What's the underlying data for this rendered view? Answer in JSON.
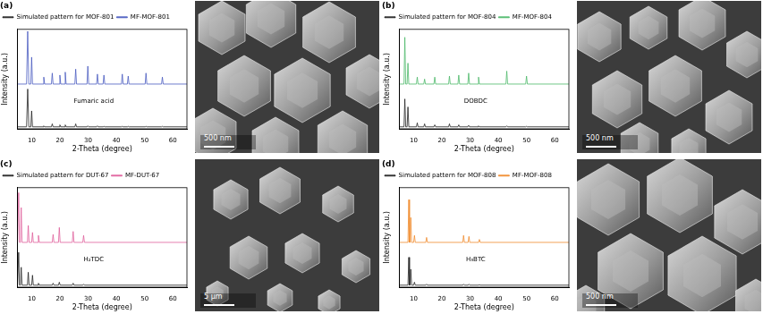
{
  "chart_data": [
    {
      "type": "line",
      "title": "(a)",
      "x_label": "2-Theta (degree)",
      "y_label": "Intensity (a.u.)",
      "annotations": [
        "Fumaric acid"
      ],
      "legend": "top-left",
      "grid": false,
      "tick_labels": "x",
      "xlim": [
        5,
        65
      ],
      "xticks": [
        10,
        20,
        30,
        40,
        50,
        60
      ],
      "ylim": [
        0,
        100
      ],
      "x": [
        5,
        8.2,
        8.6,
        9.0,
        9.7,
        10.0,
        10.3,
        14.0,
        14.3,
        14.6,
        17.0,
        17.3,
        17.6,
        19.7,
        20.0,
        20.3,
        21.6,
        21.9,
        22.2,
        25.3,
        25.6,
        25.9,
        29.6,
        29.9,
        30.2,
        33.0,
        33.3,
        33.6,
        35.3,
        35.6,
        35.9,
        41.8,
        42.1,
        42.4,
        43.9,
        44.2,
        44.5,
        50.2,
        50.5,
        50.8,
        56.0,
        56.3,
        56.6,
        65
      ],
      "series": [
        {
          "name": "Simulated pattern for MOF-801",
          "color": "#222222",
          "values": [
            2,
            2,
            40,
            2,
            2,
            18,
            2,
            2,
            3,
            2,
            2,
            5,
            2,
            2,
            4,
            2,
            2,
            4,
            2,
            2,
            5,
            2,
            2,
            3,
            2,
            2,
            3,
            2,
            2,
            2.5,
            2,
            2,
            2.5,
            2,
            2,
            2.5,
            2,
            2,
            2.5,
            2,
            2,
            2.5,
            2,
            2
          ]
        },
        {
          "name": "MF-MOF-801",
          "color": "#4a5cc0",
          "values": [
            45,
            45,
            98,
            45,
            45,
            72,
            45,
            45,
            52,
            45,
            45,
            56,
            45,
            45,
            54,
            45,
            45,
            57,
            45,
            45,
            60,
            45,
            45,
            63,
            45,
            45,
            55,
            45,
            45,
            54,
            45,
            45,
            55,
            45,
            45,
            53,
            45,
            45,
            56,
            45,
            45,
            52,
            45,
            45
          ]
        }
      ]
    },
    {
      "type": "line",
      "title": "(b)",
      "x_label": "2-Theta (degree)",
      "y_label": "Intensity (a.u.)",
      "annotations": [
        "DOBDC"
      ],
      "legend": "top-left",
      "grid": false,
      "tick_labels": "x",
      "xlim": [
        5,
        65
      ],
      "xticks": [
        10,
        20,
        30,
        40,
        50,
        60
      ],
      "ylim": [
        0,
        100
      ],
      "x": [
        5,
        6.6,
        6.9,
        7.2,
        7.7,
        8.0,
        8.3,
        11.0,
        11.3,
        11.6,
        13.6,
        13.9,
        14.2,
        17.2,
        17.5,
        17.8,
        22.4,
        22.7,
        23.0,
        25.7,
        26.0,
        26.3,
        29.2,
        29.5,
        29.8,
        32.7,
        33.0,
        33.3,
        42.7,
        43.0,
        43.3,
        49.7,
        50.0,
        50.3,
        65
      ],
      "series": [
        {
          "name": "Simulated pattern for MOF-804",
          "color": "#222222",
          "values": [
            2,
            2,
            30,
            2,
            2,
            22,
            2,
            2,
            6,
            2,
            2,
            5,
            2,
            2,
            4,
            2,
            2,
            5,
            2,
            2,
            4,
            2,
            2,
            3.5,
            2,
            2,
            3,
            2,
            2,
            3,
            2,
            2,
            2.5,
            2,
            2
          ]
        },
        {
          "name": "MF-MOF-804",
          "color": "#4cb96a",
          "values": [
            45,
            45,
            92,
            45,
            45,
            66,
            45,
            45,
            52,
            45,
            45,
            50,
            45,
            45,
            52,
            45,
            45,
            53,
            45,
            45,
            54,
            45,
            45,
            56,
            45,
            45,
            52,
            45,
            45,
            58,
            45,
            45,
            53,
            45,
            45
          ]
        }
      ]
    },
    {
      "type": "line",
      "title": "(c)",
      "x_label": "2-Theta (degree)",
      "y_label": "Intensity (a.u.)",
      "annotations": [
        "H₂TDC"
      ],
      "legend": "top-left",
      "grid": false,
      "tick_labels": "x",
      "xlim": [
        5,
        65
      ],
      "xticks": [
        10,
        20,
        30,
        40,
        50,
        60
      ],
      "ylim": [
        0,
        100
      ],
      "x": [
        5,
        5.1,
        5.4,
        5.7,
        6.0,
        6.3,
        6.6,
        8.5,
        8.8,
        9.1,
        10.0,
        10.3,
        10.6,
        12.1,
        12.4,
        12.7,
        17.3,
        17.6,
        17.9,
        19.5,
        19.8,
        20.1,
        24.4,
        24.7,
        25.0,
        28.1,
        28.4,
        28.7,
        65
      ],
      "series": [
        {
          "name": "Simulated pattern for DUT-67",
          "color": "#222222",
          "values": [
            2,
            2,
            35,
            2,
            2,
            20,
            2,
            2,
            15,
            2,
            2,
            12,
            2,
            2,
            4,
            2,
            2,
            4,
            2,
            2,
            5,
            2,
            2,
            4,
            2,
            2,
            3,
            2,
            2
          ]
        },
        {
          "name": "MF-DUT-67",
          "color": "#e0609c",
          "values": [
            45,
            45,
            95,
            45,
            45,
            80,
            45,
            45,
            62,
            45,
            45,
            55,
            45,
            45,
            52,
            45,
            45,
            53,
            45,
            45,
            60,
            45,
            45,
            56,
            45,
            45,
            52,
            45,
            45
          ]
        }
      ]
    },
    {
      "type": "line",
      "title": "(d)",
      "x_label": "2-Theta (degree)",
      "y_label": "Intensity (a.u.)",
      "annotations": [
        "H₃BTC"
      ],
      "legend": "top-left",
      "grid": false,
      "tick_labels": "x",
      "xlim": [
        5,
        65
      ],
      "xticks": [
        10,
        20,
        30,
        40,
        50,
        60
      ],
      "ylim": [
        0,
        100
      ],
      "x": [
        5,
        8.0,
        8.3,
        8.55,
        8.75,
        9.0,
        9.3,
        10.0,
        10.3,
        10.6,
        14.3,
        14.6,
        14.9,
        27.4,
        27.7,
        28.0,
        29.3,
        29.6,
        29.9,
        33.0,
        33.3,
        33.6,
        65
      ],
      "series": [
        {
          "name": "Simulated pattern for MOF-808",
          "color": "#222222",
          "values": [
            2,
            2,
            30,
            2,
            2,
            18,
            2,
            2,
            5,
            2,
            2,
            3,
            2,
            2,
            3,
            2,
            2,
            3,
            2,
            2,
            2.5,
            2,
            2
          ]
        },
        {
          "name": "MF-MOF-808",
          "color": "#f08a2c",
          "values": [
            45,
            45,
            88,
            45,
            45,
            70,
            45,
            45,
            52,
            45,
            45,
            50,
            45,
            45,
            52,
            45,
            45,
            51,
            45,
            45,
            48,
            45,
            45
          ]
        }
      ]
    }
  ],
  "micrographs": [
    {
      "scale_bar": "500 nm"
    },
    {
      "scale_bar": "500 nm"
    },
    {
      "scale_bar": "5 μm"
    },
    {
      "scale_bar": "500 nm"
    }
  ]
}
